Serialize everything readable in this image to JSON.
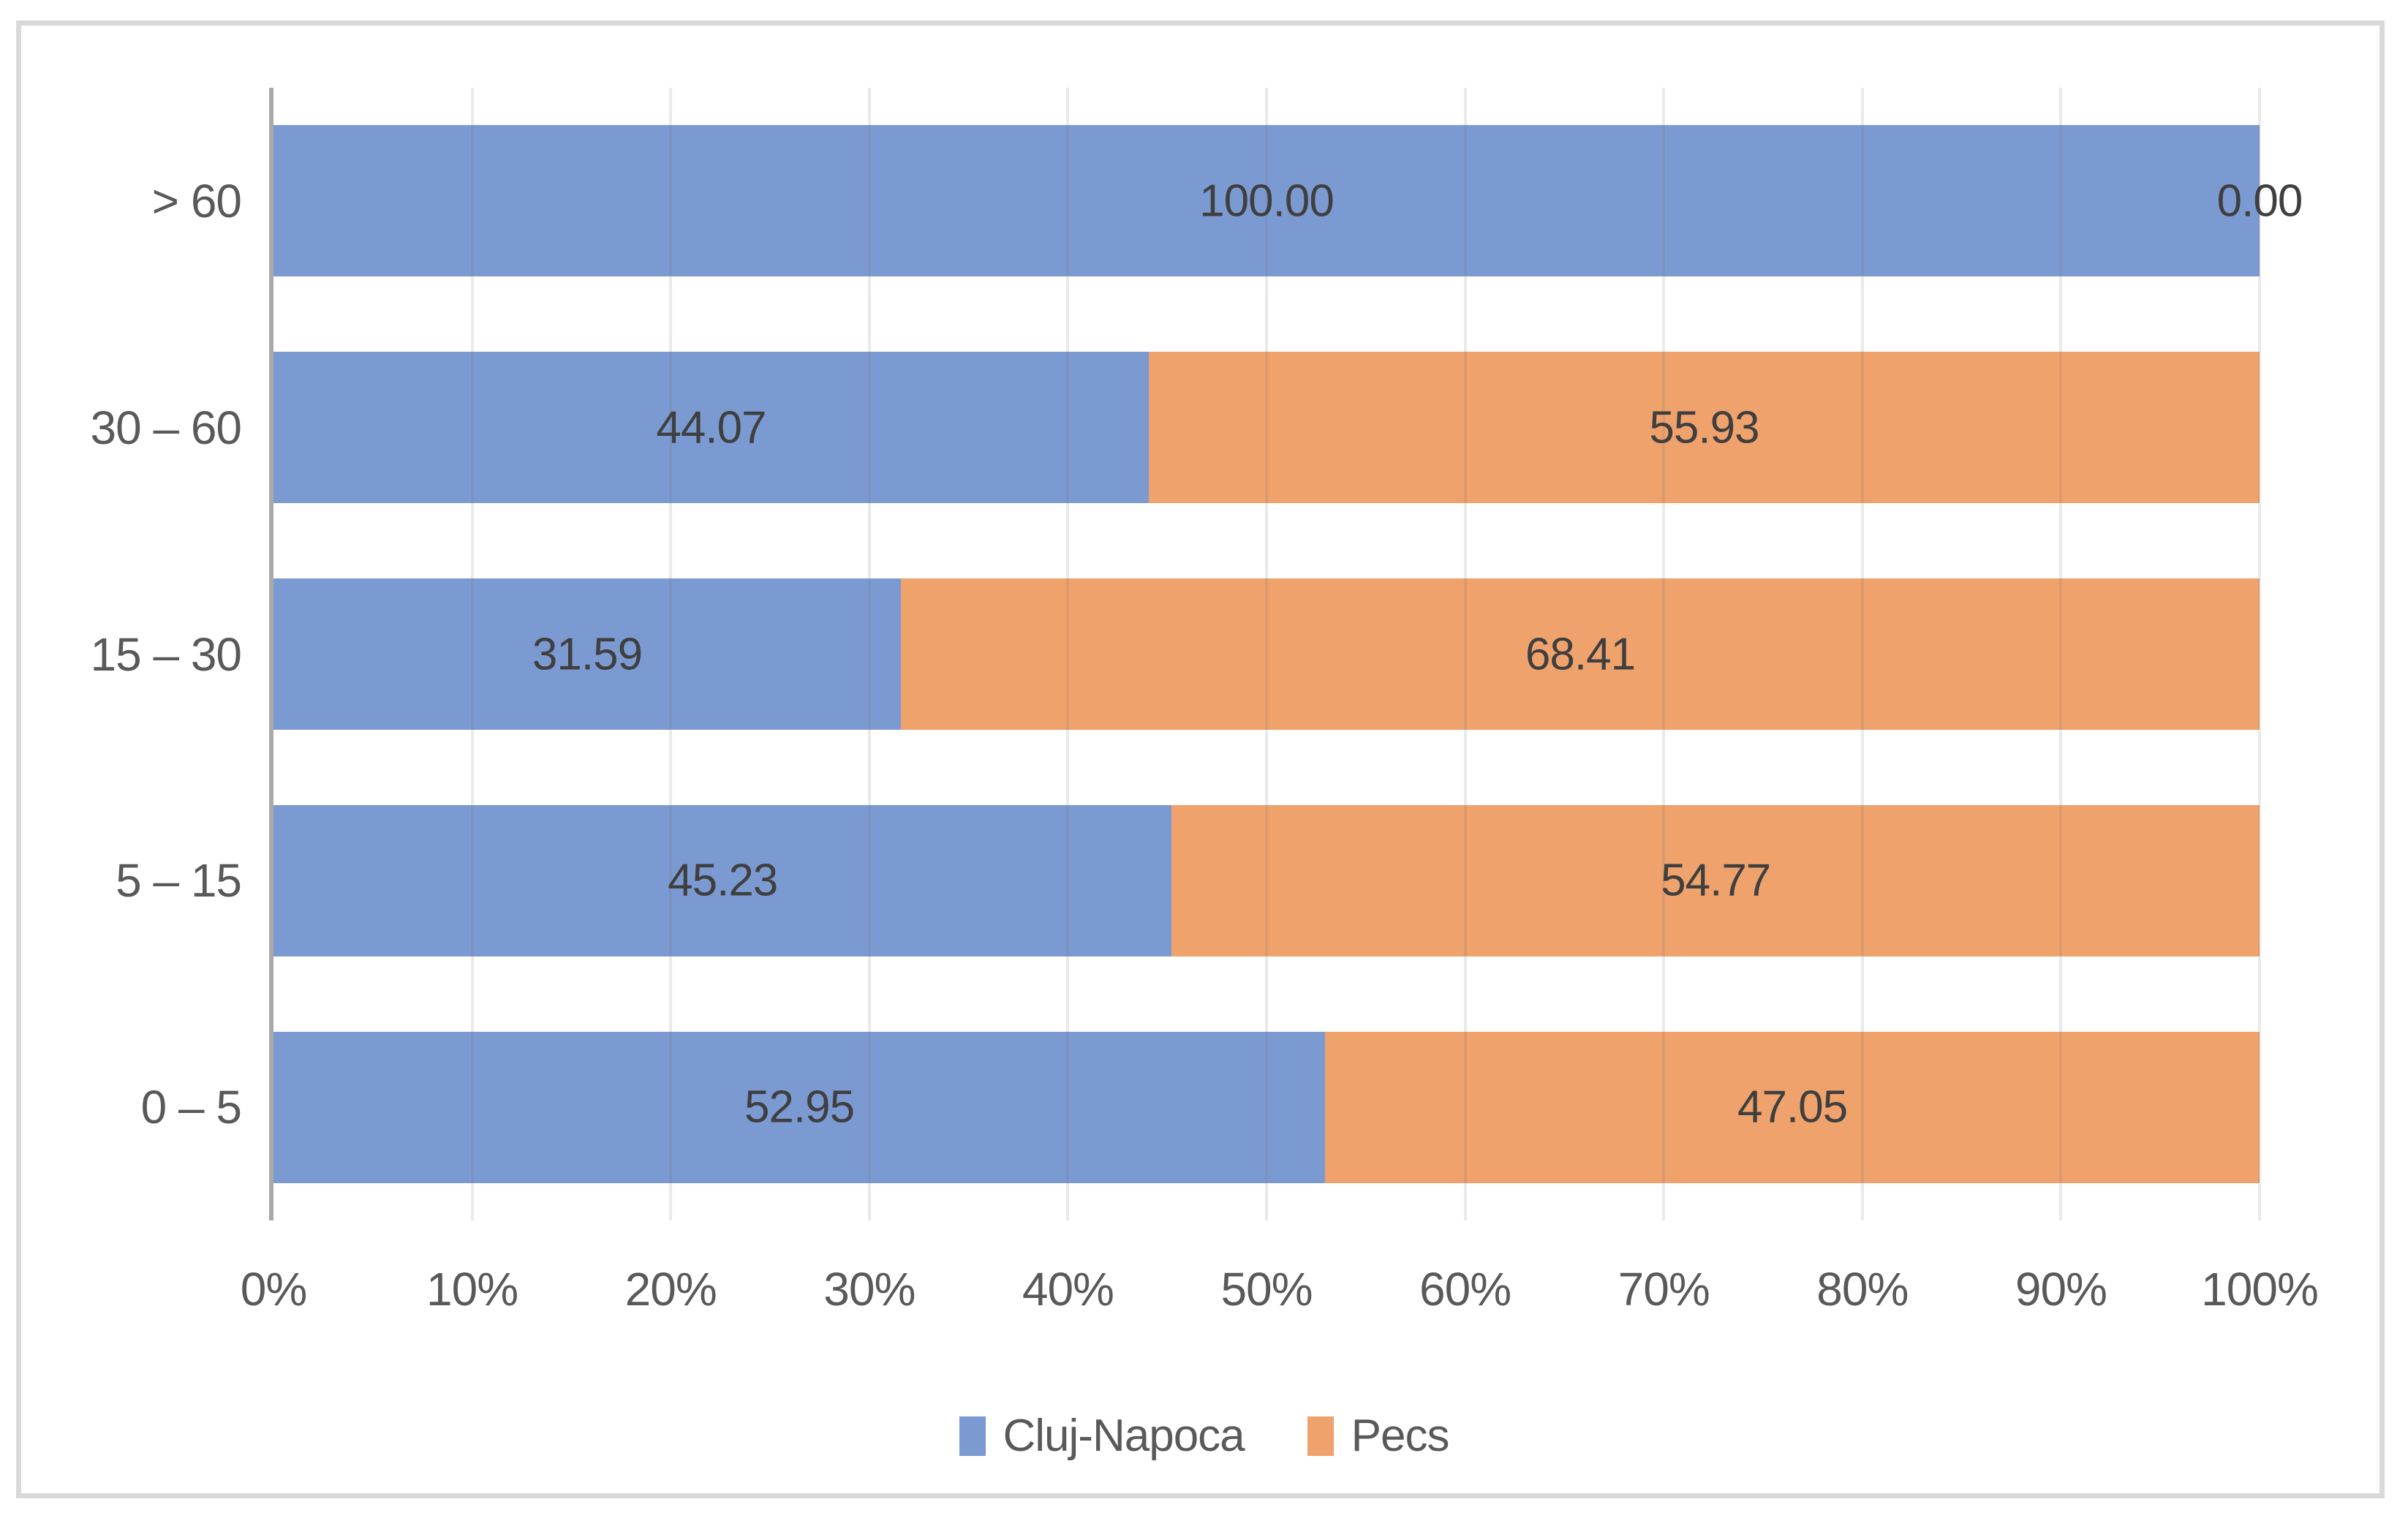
{
  "chart_data": {
    "type": "bar",
    "orientation": "horizontal",
    "stacking": "100-percent",
    "title": "",
    "xlabel": "",
    "ylabel": "",
    "categories": [
      "> 60",
      "30 – 60",
      "15 – 30",
      "5 – 15",
      "0 – 5"
    ],
    "series": [
      {
        "name": "Cluj-Napoca",
        "color": "#7C9AD2",
        "values": [
          100.0,
          44.07,
          31.59,
          45.23,
          52.95
        ]
      },
      {
        "name": "Pecs",
        "color": "#EFA26C",
        "values": [
          0.0,
          55.93,
          68.41,
          54.77,
          47.05
        ]
      }
    ],
    "data_label_decimals": 2,
    "x_axis": {
      "min": 0,
      "max": 100,
      "tick_step": 10,
      "ticks": [
        "0%",
        "10%",
        "20%",
        "30%",
        "40%",
        "50%",
        "60%",
        "70%",
        "80%",
        "90%",
        "100%"
      ],
      "grid": true
    },
    "legend": {
      "position": "bottom",
      "entries": [
        "Cluj-Napoca",
        "Pecs"
      ]
    }
  },
  "colors": {
    "series_blue": "#7C9AD2",
    "series_orange": "#EFA26C",
    "data_label_text": "#3F3F3F",
    "axis_text": "#595959",
    "gridline": "#E8E8E8",
    "axis_line": "#A9A9A9",
    "figure_border": "#D9D9D9",
    "background": "#FFFFFF"
  }
}
